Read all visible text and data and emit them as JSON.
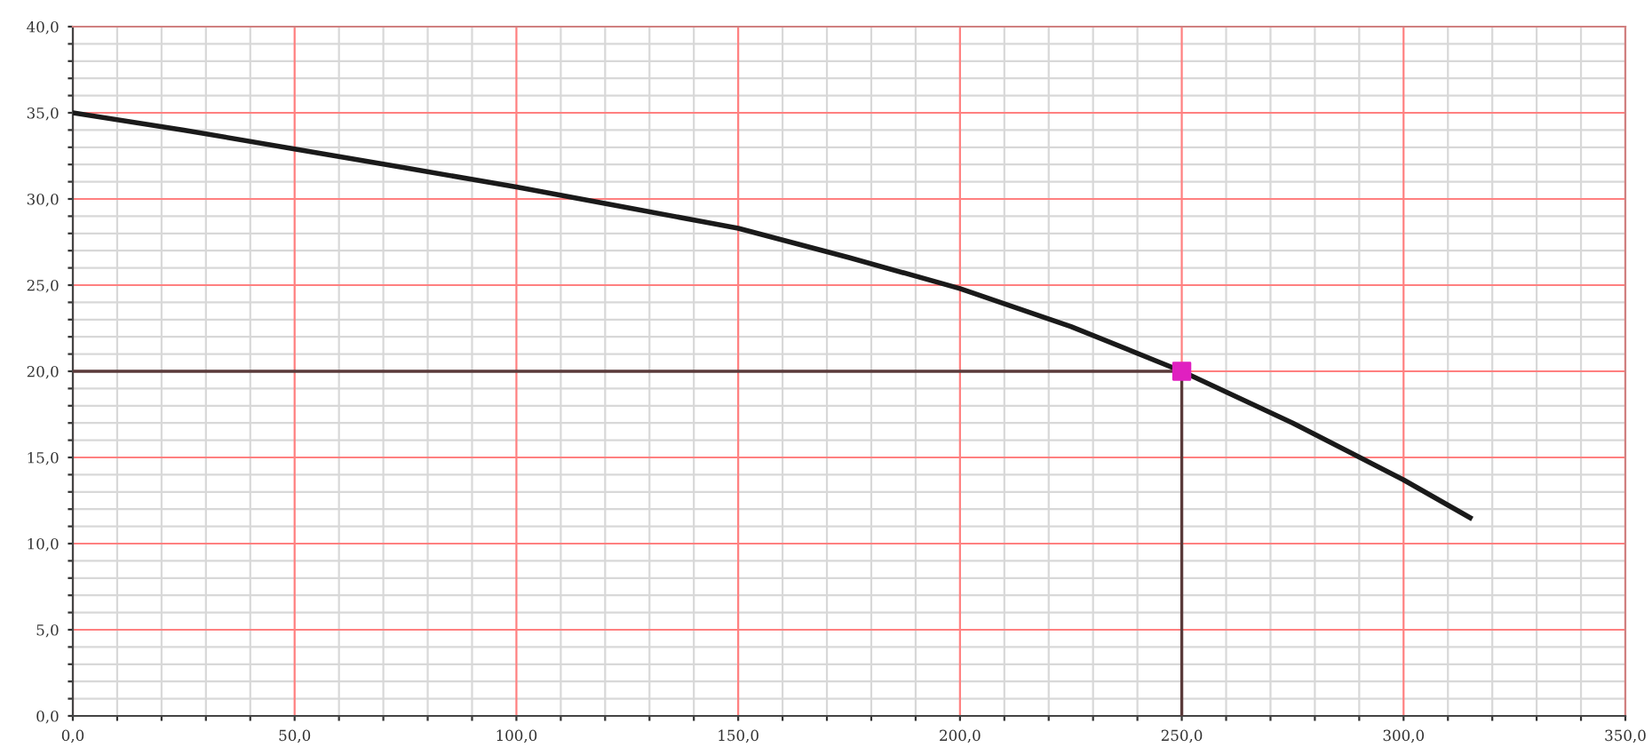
{
  "chart_data": {
    "type": "line",
    "series": [
      {
        "color": "#1a1a1a",
        "x": [
          0,
          25,
          50,
          75,
          100,
          125,
          150,
          175,
          200,
          225,
          250,
          275,
          300,
          315
        ],
        "values": [
          35.0,
          34.0,
          32.9,
          31.8,
          30.7,
          29.5,
          28.3,
          26.6,
          24.8,
          22.6,
          20.0,
          17.0,
          13.7,
          11.5
        ]
      },
      {
        "type": "line",
        "color": "#5a3a3a",
        "x": [
          0,
          250
        ],
        "values": [
          20,
          20
        ]
      },
      {
        "type": "line",
        "color": "#5a3a3a",
        "x": [
          250,
          250
        ],
        "values": [
          0,
          20
        ]
      },
      {
        "type": "scatter",
        "color": "#e020c0",
        "marker": "square",
        "x": [
          250
        ],
        "values": [
          20
        ]
      }
    ],
    "xlim": [
      0,
      350
    ],
    "ylim": [
      0,
      40
    ],
    "xticks": [
      {
        "value": 0,
        "label": "0,0"
      },
      {
        "value": 10,
        "label": null
      },
      {
        "value": 20,
        "label": null
      },
      {
        "value": 30,
        "label": null
      },
      {
        "value": 40,
        "label": null
      },
      {
        "value": 50,
        "label": "50,0"
      },
      {
        "value": 60,
        "label": null
      },
      {
        "value": 70,
        "label": null
      },
      {
        "value": 80,
        "label": null
      },
      {
        "value": 90,
        "label": null
      },
      {
        "value": 100,
        "label": "100,0"
      },
      {
        "value": 110,
        "label": null
      },
      {
        "value": 120,
        "label": null
      },
      {
        "value": 130,
        "label": null
      },
      {
        "value": 140,
        "label": null
      },
      {
        "value": 150,
        "label": "150,0"
      },
      {
        "value": 160,
        "label": null
      },
      {
        "value": 170,
        "label": null
      },
      {
        "value": 180,
        "label": null
      },
      {
        "value": 190,
        "label": null
      },
      {
        "value": 200,
        "label": "200,0"
      },
      {
        "value": 210,
        "label": null
      },
      {
        "value": 220,
        "label": null
      },
      {
        "value": 230,
        "label": null
      },
      {
        "value": 240,
        "label": null
      },
      {
        "value": 250,
        "label": "250,0"
      },
      {
        "value": 260,
        "label": null
      },
      {
        "value": 270,
        "label": null
      },
      {
        "value": 280,
        "label": null
      },
      {
        "value": 290,
        "label": null
      },
      {
        "value": 300,
        "label": "300,0"
      },
      {
        "value": 310,
        "label": null
      },
      {
        "value": 320,
        "label": null
      },
      {
        "value": 330,
        "label": null
      },
      {
        "value": 340,
        "label": null
      },
      {
        "value": 350,
        "label": "350,0"
      }
    ],
    "yticks": [
      {
        "value": 0,
        "label": "0,0"
      },
      {
        "value": 1,
        "label": null
      },
      {
        "value": 2,
        "label": null
      },
      {
        "value": 3,
        "label": null
      },
      {
        "value": 4,
        "label": null
      },
      {
        "value": 5,
        "label": "5,0"
      },
      {
        "value": 6,
        "label": null
      },
      {
        "value": 7,
        "label": null
      },
      {
        "value": 8,
        "label": null
      },
      {
        "value": 9,
        "label": null
      },
      {
        "value": 10,
        "label": "10,0"
      },
      {
        "value": 11,
        "label": null
      },
      {
        "value": 12,
        "label": null
      },
      {
        "value": 13,
        "label": null
      },
      {
        "value": 14,
        "label": null
      },
      {
        "value": 15,
        "label": "15,0"
      },
      {
        "value": 16,
        "label": null
      },
      {
        "value": 17,
        "label": null
      },
      {
        "value": 18,
        "label": null
      },
      {
        "value": 19,
        "label": null
      },
      {
        "value": 20,
        "label": "20,0"
      },
      {
        "value": 21,
        "label": null
      },
      {
        "value": 22,
        "label": null
      },
      {
        "value": 23,
        "label": null
      },
      {
        "value": 24,
        "label": null
      },
      {
        "value": 25,
        "label": "25,0"
      },
      {
        "value": 26,
        "label": null
      },
      {
        "value": 27,
        "label": null
      },
      {
        "value": 28,
        "label": null
      },
      {
        "value": 29,
        "label": null
      },
      {
        "value": 30,
        "label": "30,0"
      },
      {
        "value": 31,
        "label": null
      },
      {
        "value": 32,
        "label": null
      },
      {
        "value": 33,
        "label": null
      },
      {
        "value": 34,
        "label": null
      },
      {
        "value": 35,
        "label": "35,0"
      },
      {
        "value": 36,
        "label": null
      },
      {
        "value": 37,
        "label": null
      },
      {
        "value": 38,
        "label": null
      },
      {
        "value": 39,
        "label": null
      },
      {
        "value": 40,
        "label": "40,0"
      }
    ],
    "grid": true
  }
}
